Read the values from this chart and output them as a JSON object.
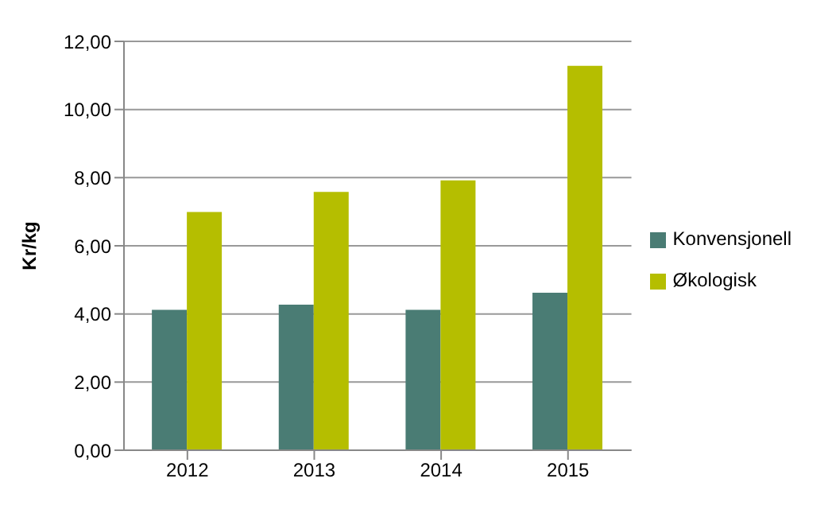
{
  "chart_data": {
    "type": "bar",
    "ylabel": "Kr/kg",
    "categories": [
      "2012",
      "2013",
      "2014",
      "2015"
    ],
    "series": [
      {
        "name": "Konvensjonell",
        "color": "#4a7c74",
        "values": [
          4.12,
          4.27,
          4.12,
          4.62
        ]
      },
      {
        "name": "Økologisk",
        "color": "#b5be00",
        "values": [
          6.99,
          7.58,
          7.92,
          11.28
        ]
      }
    ],
    "ylim": [
      0,
      12
    ],
    "yticks": [
      {
        "value": 0,
        "label": "0,00"
      },
      {
        "value": 2,
        "label": "2,00"
      },
      {
        "value": 4,
        "label": "4,00"
      },
      {
        "value": 6,
        "label": "6,00"
      },
      {
        "value": 8,
        "label": "8,00"
      },
      {
        "value": 10,
        "label": "10,00"
      },
      {
        "value": 12,
        "label": "12,00"
      }
    ],
    "grid": "y",
    "legend": "right"
  }
}
